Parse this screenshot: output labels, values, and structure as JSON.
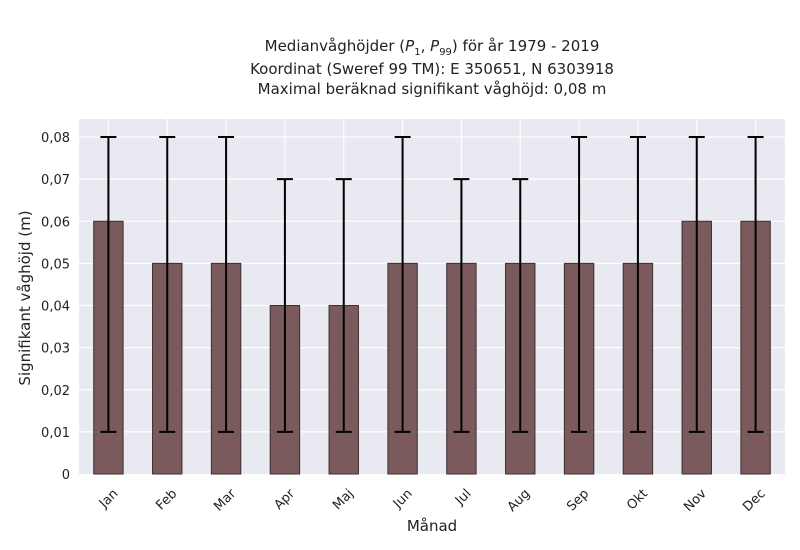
{
  "title": {
    "prefix": "Medianvåghöjder (",
    "p1_base": "P",
    "p1_sub": "1",
    "sep": ", ",
    "p99_base": "P",
    "p99_sub": "99",
    "suffix": ") för år 1979 - 2019",
    "line2": "Koordinat (Sweref 99 TM): E 350651, N 6303918",
    "line3": "Maximal beräknad signifikant våghöjd: 0,08 m"
  },
  "chart_data": {
    "type": "bar",
    "title": "Medianvåghöjder (P1, P99) för år 1979 - 2019",
    "xlabel": "Månad",
    "ylabel": "Signifikant våghöjd (m)",
    "categories": [
      "Jan",
      "Feb",
      "Mar",
      "Apr",
      "Maj",
      "Jun",
      "Jul",
      "Aug",
      "Sep",
      "Okt",
      "Nov",
      "Dec"
    ],
    "values": [
      0.06,
      0.05,
      0.05,
      0.04,
      0.04,
      0.05,
      0.05,
      0.05,
      0.05,
      0.05,
      0.06,
      0.06
    ],
    "error_low": [
      0.01,
      0.01,
      0.01,
      0.01,
      0.01,
      0.01,
      0.01,
      0.01,
      0.01,
      0.01,
      0.01,
      0.01
    ],
    "error_high": [
      0.08,
      0.08,
      0.08,
      0.07,
      0.07,
      0.08,
      0.07,
      0.07,
      0.08,
      0.08,
      0.08,
      0.08
    ],
    "ylim": [
      0,
      0.08
    ],
    "yticks": [
      0,
      0.01,
      0.02,
      0.03,
      0.04,
      0.05,
      0.06,
      0.07,
      0.08
    ],
    "ytick_labels": [
      "0",
      "0,01",
      "0,02",
      "0,03",
      "0,04",
      "0,05",
      "0,06",
      "0,07",
      "0,08"
    ],
    "grid": true,
    "bar_color": "#7a5a5c",
    "bar_edge_color": "#3e2f30",
    "error_color": "#000000",
    "background_color": "#e9e9f1",
    "grid_color": "#ffffff"
  }
}
